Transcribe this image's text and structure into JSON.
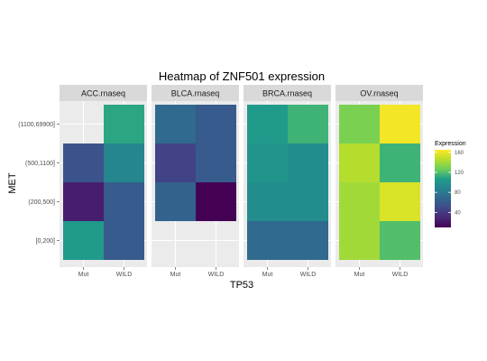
{
  "chart_data": {
    "type": "heatmap",
    "title": "Heatmap of ZNF501 expression",
    "xlabel": "TP53",
    "ylabel": "MET",
    "x_categories": [
      "Mut",
      "WILD"
    ],
    "y_categories": [
      "[0,200]",
      "(200,500]",
      "(500,1100]",
      "(1100,69900]"
    ],
    "facets": [
      {
        "name": "ACC.rnaseq",
        "cells": [
          [
            105,
            60
          ],
          [
            25,
            60
          ],
          [
            55,
            90
          ],
          [
            null,
            110
          ]
        ]
      },
      {
        "name": "BLCA.rnaseq",
        "cells": [
          [
            null,
            null
          ],
          [
            65,
            10
          ],
          [
            45,
            60
          ],
          [
            70,
            60
          ]
        ]
      },
      {
        "name": "BRCA.rnaseq",
        "cells": [
          [
            70,
            70
          ],
          [
            95,
            95
          ],
          [
            100,
            95
          ],
          [
            105,
            115
          ]
        ]
      },
      {
        "name": "OV.rnaseq",
        "cells": [
          [
            140,
            120
          ],
          [
            140,
            155
          ],
          [
            145,
            115
          ],
          [
            130,
            162
          ]
        ]
      }
    ],
    "legend": {
      "title": "Expression",
      "position": "right",
      "min": 10,
      "max": 165,
      "ticks": [
        40,
        80,
        120,
        160
      ]
    },
    "colorscale": [
      "#440154",
      "#482777",
      "#3f4a8a",
      "#31678e",
      "#26838f",
      "#1f9d8a",
      "#6cce5a",
      "#b6de2b",
      "#fee825"
    ]
  }
}
